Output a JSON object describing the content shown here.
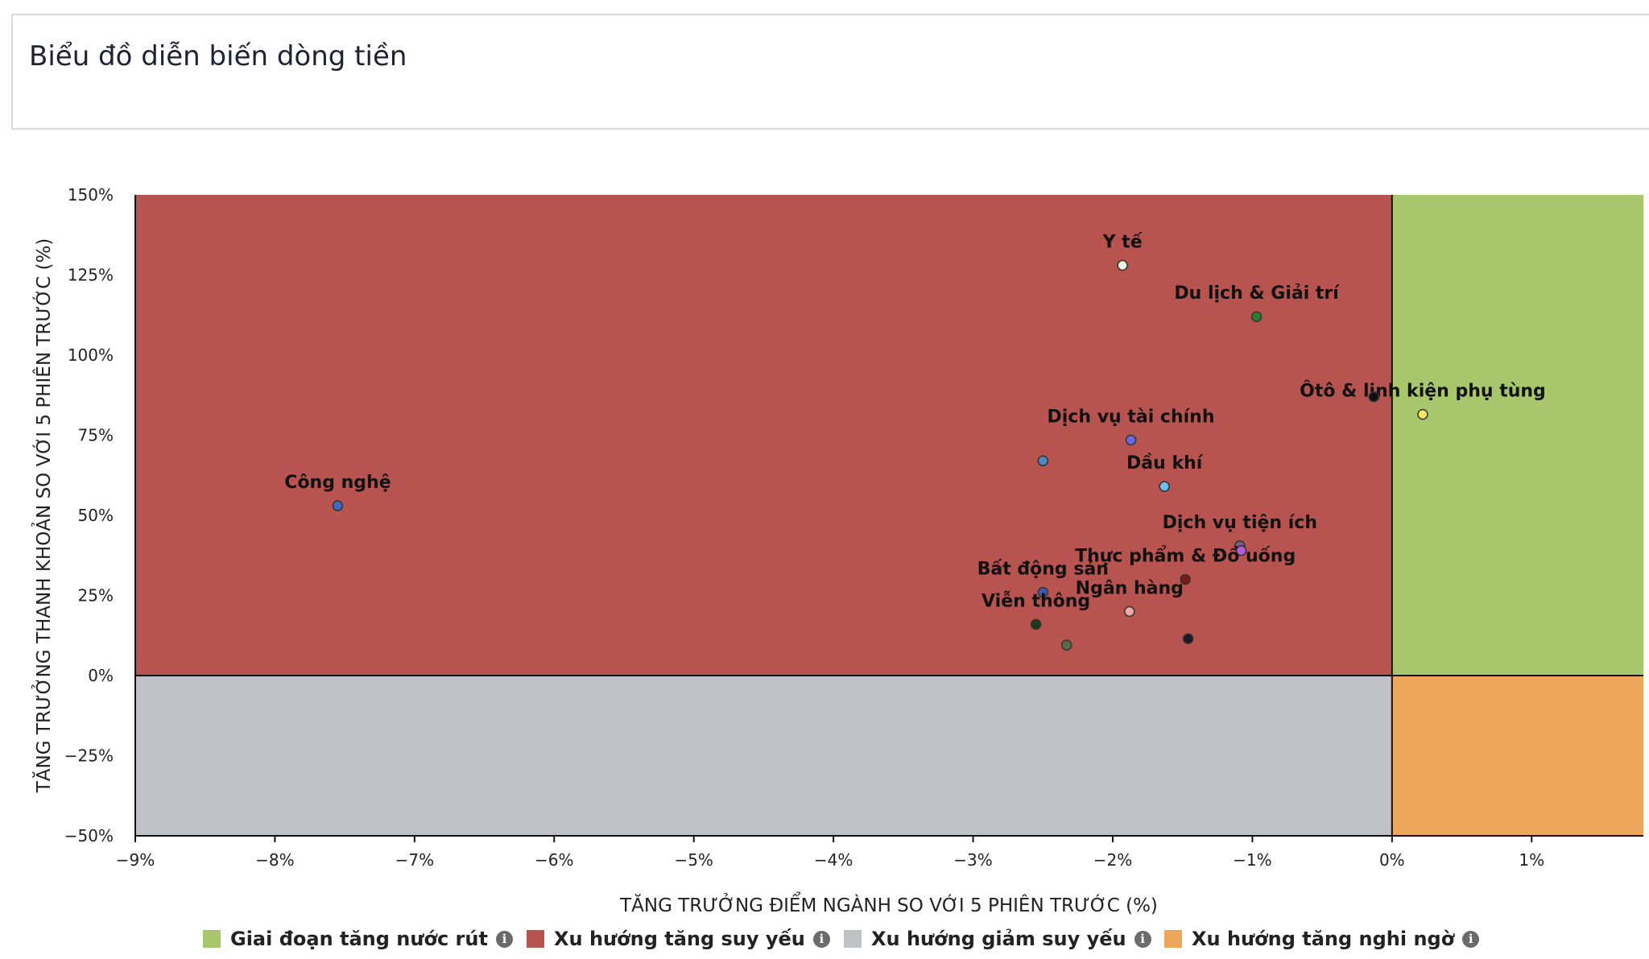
{
  "header": {
    "title": "Biểu đồ diễn biến dòng tiền"
  },
  "colors": {
    "q_top_right": "#a8c66c",
    "q_top_left": "#b8544f",
    "q_bottom_left": "#c0c1c6",
    "q_bottom_right": "#eea65a"
  },
  "chart_data": {
    "type": "scatter",
    "xlabel": "TĂNG TRƯỞNG ĐIỂM NGÀNH SO VỚI 5 PHIÊN TRƯỚC (%)",
    "ylabel": "TĂNG TRƯỞNG THANH KHOẢN SO VỚI 5 PHIÊN TRƯỚC (%)",
    "xlim": [
      -9,
      1.8
    ],
    "ylim": [
      -50,
      150
    ],
    "x_ticks": [
      -9,
      -8,
      -7,
      -6,
      -5,
      -4,
      -3,
      -2,
      -1,
      0,
      1
    ],
    "x_tick_labels": [
      "−9%",
      "−8%",
      "−7%",
      "−6%",
      "−5%",
      "−4%",
      "−3%",
      "−2%",
      "−1%",
      "0%",
      "1%"
    ],
    "y_ticks": [
      150,
      125,
      100,
      75,
      50,
      25,
      0,
      -25,
      -50
    ],
    "y_tick_labels": [
      "150%",
      "125%",
      "100%",
      "75%",
      "50%",
      "25%",
      "0%",
      "−25%",
      "−50%"
    ],
    "points": [
      {
        "label": "Y tế",
        "x": -1.93,
        "y": 128,
        "color": "#e9f6dc"
      },
      {
        "label": "Du lịch & Giải trí",
        "x": -0.97,
        "y": 112,
        "color": "#2e7a2e"
      },
      {
        "label": "Ôtô & linh kiện phụ tùng",
        "x": 0.22,
        "y": 81.5,
        "color": "#f6ea5c"
      },
      {
        "label": "",
        "x": -0.13,
        "y": 87,
        "color": "#111111"
      },
      {
        "label": "Dịch vụ tài chính",
        "x": -1.87,
        "y": 73.5,
        "color": "#6a6ae0"
      },
      {
        "label": "",
        "x": -2.5,
        "y": 67,
        "color": "#4a8ac4"
      },
      {
        "label": "Dầu khí",
        "x": -1.63,
        "y": 59,
        "color": "#6cc0ec"
      },
      {
        "label": "Công nghệ",
        "x": -7.55,
        "y": 53,
        "color": "#3a6ac8"
      },
      {
        "label": "Dịch vụ tiện ích",
        "x": -1.09,
        "y": 40.5,
        "color": "#7a5a88"
      },
      {
        "label": "",
        "x": -1.08,
        "y": 39,
        "color": "#b85ae0"
      },
      {
        "label": "Thực phẩm & Đồ uống",
        "x": -1.48,
        "y": 30,
        "color": "#7a1a1a"
      },
      {
        "label": "Bất động sản",
        "x": -2.5,
        "y": 26,
        "color": "#3a5ab4"
      },
      {
        "label": "Ngân hàng",
        "x": -1.88,
        "y": 20,
        "color": "#f0a8a8"
      },
      {
        "label": "Viễn thông",
        "x": -2.55,
        "y": 16,
        "color": "#1a3a1a"
      },
      {
        "label": "",
        "x": -1.46,
        "y": 11.5,
        "color": "#1a1a2a"
      },
      {
        "label": "",
        "x": -2.33,
        "y": 9.5,
        "color": "#5a6a4a"
      }
    ]
  },
  "legend": [
    {
      "label": "Giai đoạn tăng nước rút",
      "color": "#a8c66c",
      "icon": "info-icon"
    },
    {
      "label": "Xu hướng tăng suy yếu",
      "color": "#b8544f",
      "icon": "info-icon"
    },
    {
      "label": "Xu hướng giảm suy yếu",
      "color": "#c0c1c6",
      "icon": "info-icon"
    },
    {
      "label": "Xu hướng tăng nghi ngờ",
      "color": "#eea65a",
      "icon": "info-icon"
    }
  ]
}
